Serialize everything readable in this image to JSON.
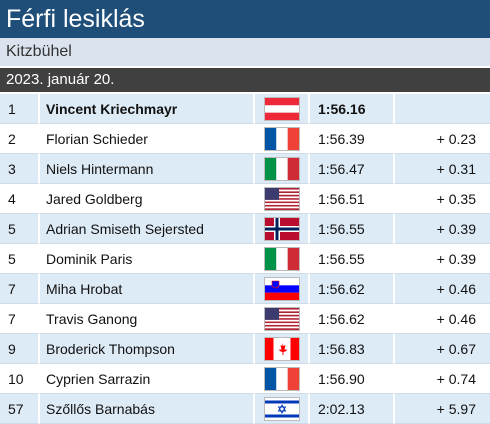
{
  "header": {
    "title": "Férfi lesiklás",
    "location": "Kitzbühel",
    "date": "2023. január 20."
  },
  "table": {
    "rows": [
      {
        "rank": 1,
        "name": "Vincent Kriechmayr",
        "time": "1:56.16"
      },
      {
        "rank": 2,
        "name": "Florian Schieder",
        "time": "1:56.39",
        "gap": "+ 0.23"
      },
      {
        "rank": 3,
        "name": "Niels Hintermann",
        "time": "1:56.47",
        "gap": "+ 0.31"
      },
      {
        "rank": 4,
        "name": "Jared Goldberg",
        "time": "1:56.51",
        "gap": "+ 0.35"
      },
      {
        "rank": 5,
        "name": "Adrian Smiseth Sejersted",
        "time": "1:56.55",
        "gap": "+ 0.39"
      },
      {
        "rank": 5,
        "name": "Dominik Paris",
        "time": "1:56.55",
        "gap": "+ 0.39"
      },
      {
        "rank": 7,
        "name": "Miha Hrobat",
        "time": "1:56.62",
        "gap": "+ 0.46"
      },
      {
        "rank": 7,
        "name": "Travis Ganong",
        "time": "1:56.62",
        "gap": "+ 0.46"
      },
      {
        "rank": 9,
        "name": "Broderick Thompson",
        "time": "1:56.83",
        "gap": "+ 0.67"
      },
      {
        "rank": 10,
        "name": "Cyprien Sarrazin",
        "time": "1:56.90",
        "gap": "+ 0.74"
      },
      {
        "rank": 57,
        "name": "Szőllős Barnabás",
        "time": "2:02.13",
        "gap": "+ 5.97"
      }
    ]
  }
}
